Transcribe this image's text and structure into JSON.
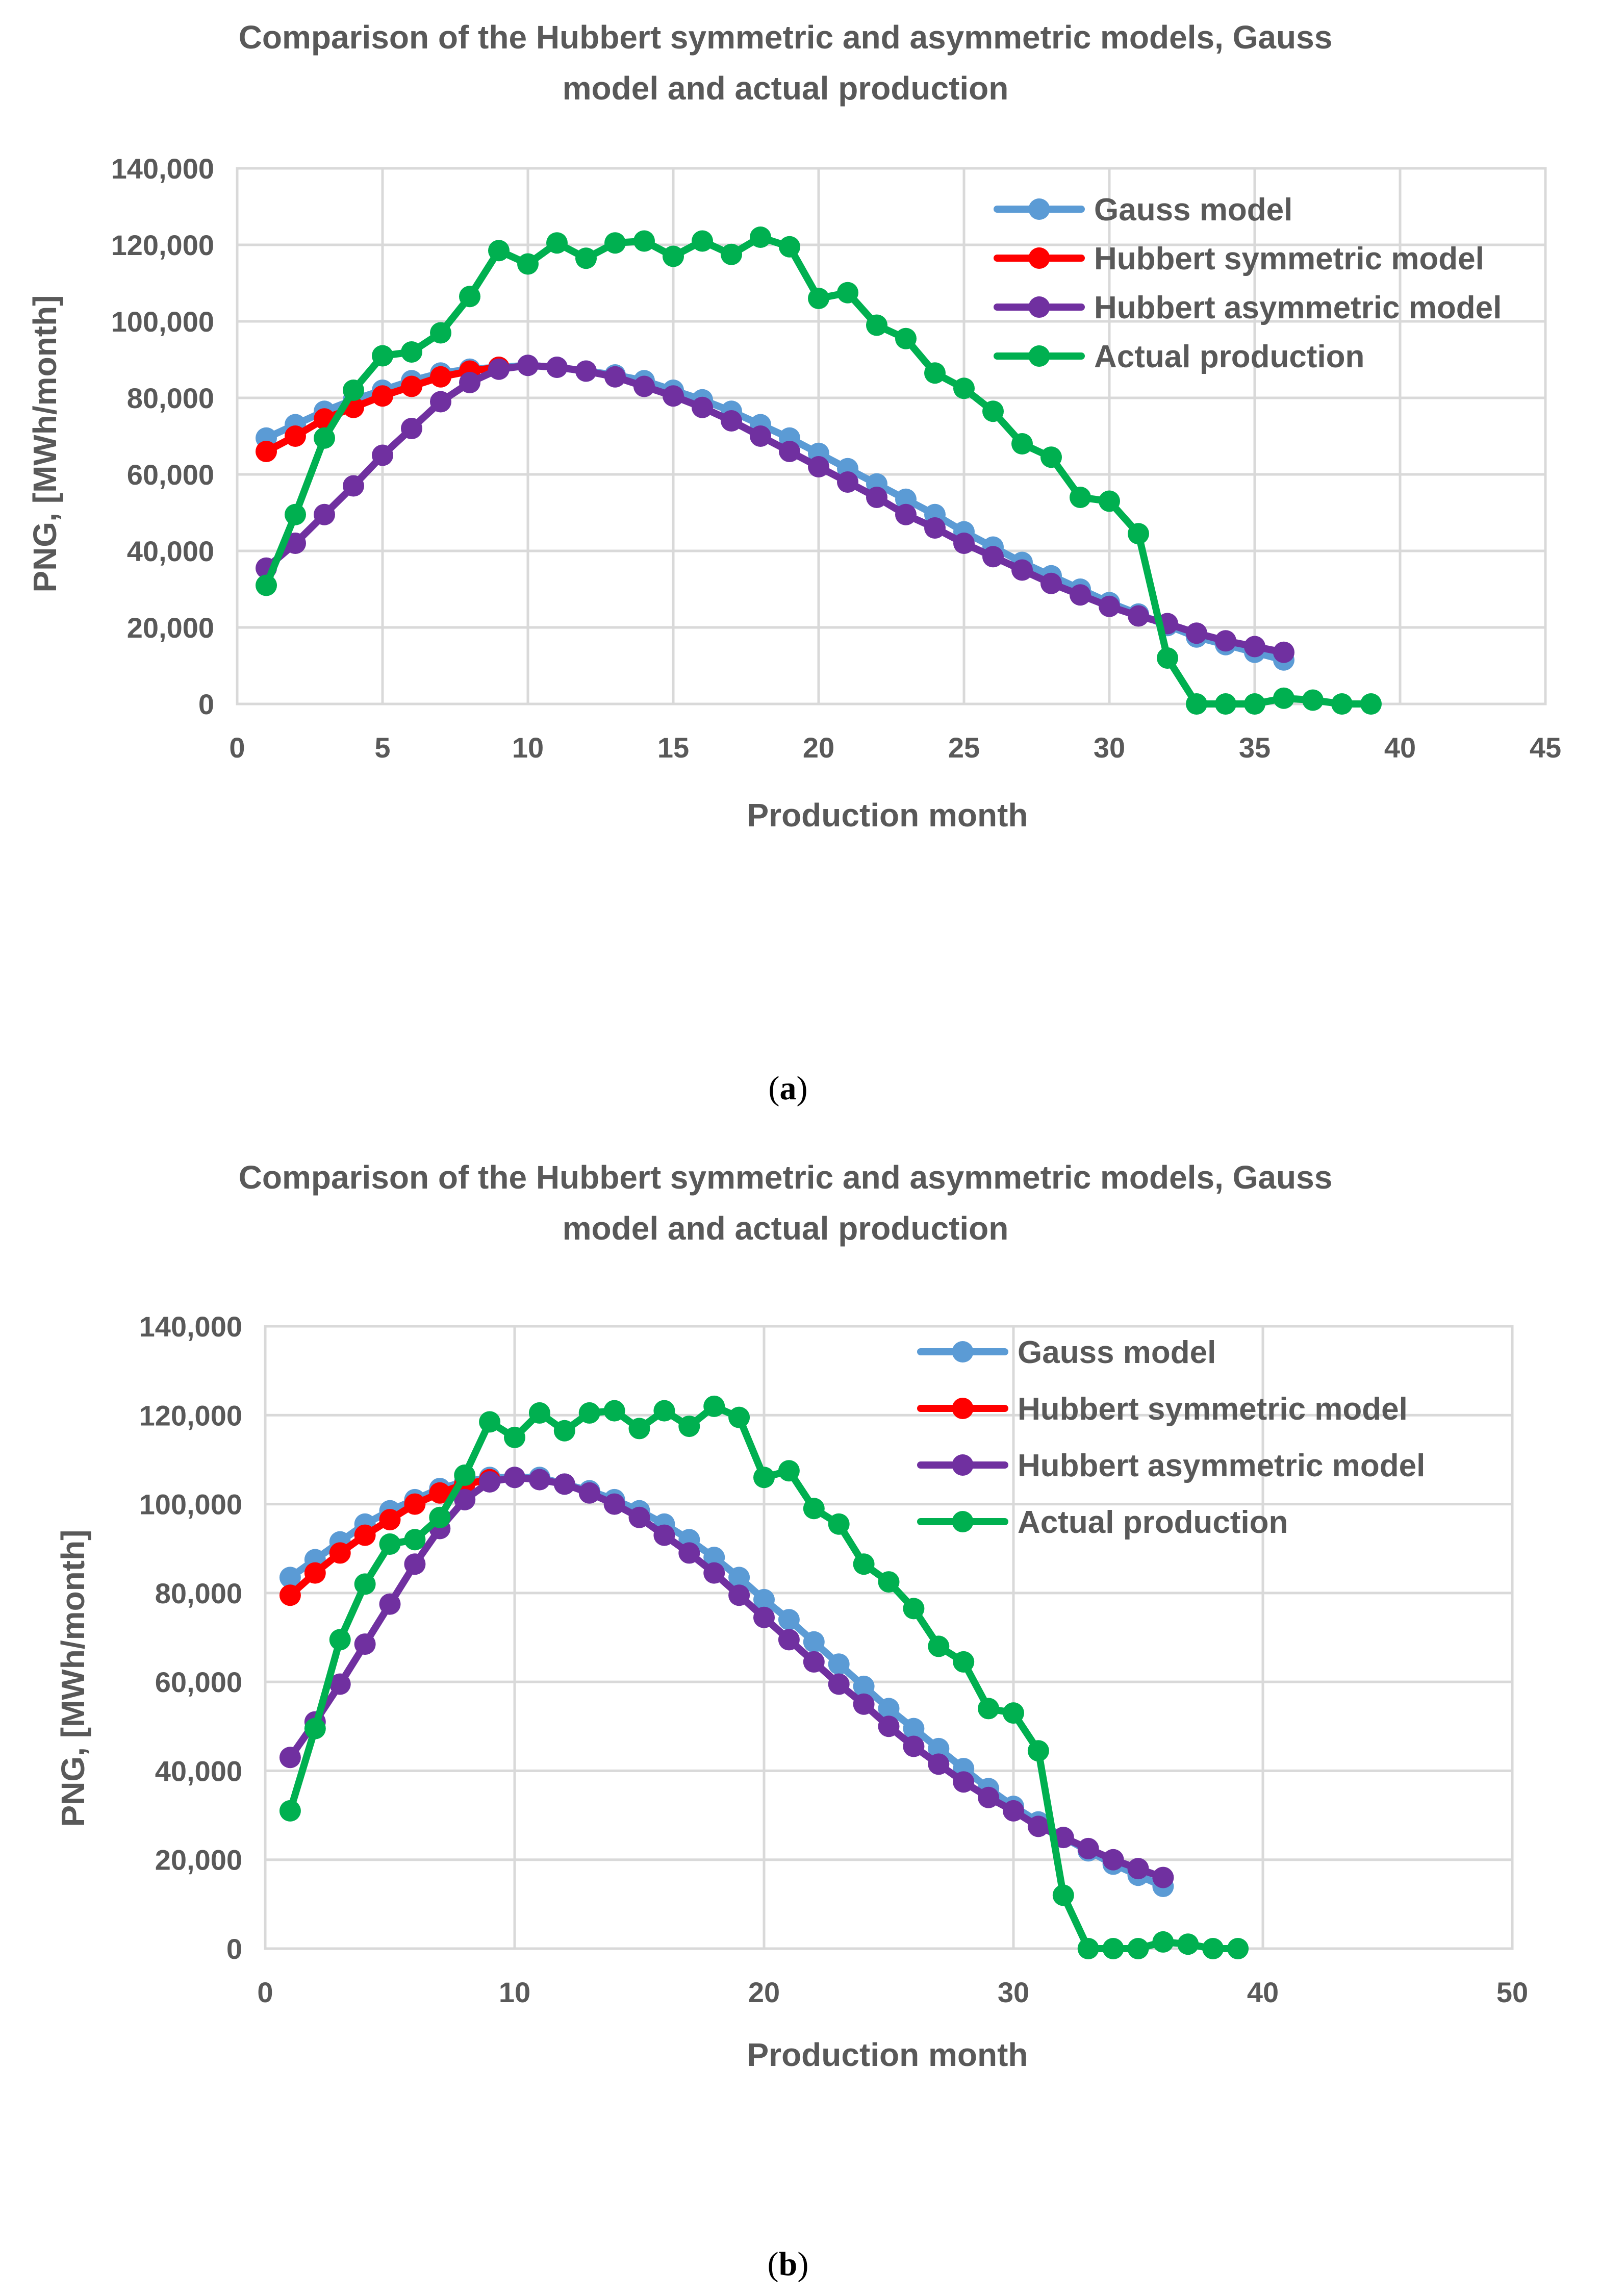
{
  "colors": {
    "gauss": "#5b9bd5",
    "hubbert_symmetric": "#ff0000",
    "hubbert_asymmetric": "#7030a0",
    "actual": "#00b050",
    "text": "#595959",
    "grid": "#d9d9d9"
  },
  "chart_data": [
    {
      "id": "a",
      "type": "line",
      "title_line1": "Comparison of the Hubbert symmetric and asymmetric models, Gauss",
      "title_line2": "model and actual production",
      "xlabel": "Production month",
      "ylabel": "PNG, [MWh/month]",
      "xlim": [
        0,
        45
      ],
      "xticks": [
        0,
        5,
        10,
        15,
        20,
        25,
        30,
        35,
        40,
        45
      ],
      "ylim": [
        0,
        140000
      ],
      "yticks": [
        0,
        20000,
        40000,
        60000,
        80000,
        100000,
        120000,
        140000
      ],
      "ytick_labels": [
        "0",
        "20,000",
        "40,000",
        "60,000",
        "80,000",
        "100,000",
        "120,000",
        "140,000"
      ],
      "caption_open": "(",
      "caption_letter": "a",
      "caption_close": ")",
      "legend_position": "top-right",
      "series": [
        {
          "key": "gauss",
          "name": "Gauss model",
          "x": [
            1,
            2,
            3,
            4,
            5,
            6,
            7,
            8,
            9,
            10,
            11,
            12,
            13,
            14,
            15,
            16,
            17,
            18,
            19,
            20,
            21,
            22,
            23,
            24,
            25,
            26,
            27,
            28,
            29,
            30,
            31,
            32,
            33,
            34,
            35,
            36
          ],
          "y": [
            69500,
            73000,
            76500,
            79500,
            82000,
            84500,
            86500,
            87500,
            88000,
            88500,
            88000,
            87000,
            86000,
            84500,
            82000,
            79500,
            76500,
            73000,
            69500,
            65500,
            61500,
            57500,
            53500,
            49500,
            45000,
            41000,
            37000,
            33500,
            30000,
            26500,
            23500,
            20500,
            17500,
            15500,
            13500,
            11500
          ]
        },
        {
          "key": "hubbert_symmetric",
          "name": "Hubbert symmetric model",
          "x": [
            1,
            2,
            3,
            4,
            5,
            6,
            7,
            8,
            9
          ],
          "y": [
            66000,
            70000,
            74500,
            77500,
            80500,
            83000,
            85500,
            87000,
            88000
          ]
        },
        {
          "key": "hubbert_asymmetric",
          "name": "Hubbert asymmetric model",
          "x": [
            1,
            2,
            3,
            4,
            5,
            6,
            7,
            8,
            9,
            10,
            11,
            12,
            13,
            14,
            15,
            16,
            17,
            18,
            19,
            20,
            21,
            22,
            23,
            24,
            25,
            26,
            27,
            28,
            29,
            30,
            31,
            32,
            33,
            34,
            35,
            36
          ],
          "y": [
            35500,
            42000,
            49500,
            57000,
            65000,
            72000,
            79000,
            84000,
            87500,
            88500,
            88000,
            87000,
            85500,
            83000,
            80500,
            77500,
            74000,
            70000,
            66000,
            62000,
            58000,
            54000,
            49500,
            46000,
            42000,
            38500,
            35000,
            31500,
            28500,
            25500,
            23000,
            21000,
            18500,
            16500,
            15000,
            13500
          ]
        },
        {
          "key": "actual",
          "name": "Actual production",
          "x": [
            1,
            2,
            3,
            4,
            5,
            6,
            7,
            8,
            9,
            10,
            11,
            12,
            13,
            14,
            15,
            16,
            17,
            18,
            19,
            20,
            21,
            22,
            23,
            24,
            25,
            26,
            27,
            28,
            29,
            30,
            31,
            32,
            33,
            34,
            35,
            36,
            37,
            38,
            39
          ],
          "y": [
            31000,
            49500,
            69500,
            82000,
            91000,
            92000,
            97000,
            106500,
            118500,
            115000,
            120500,
            116500,
            120500,
            121000,
            117000,
            121000,
            117500,
            122000,
            119500,
            106000,
            107500,
            99000,
            95500,
            86500,
            82500,
            76500,
            68000,
            64500,
            54000,
            53000,
            44500,
            12000,
            0,
            0,
            0,
            1500,
            1000,
            0,
            0
          ]
        }
      ]
    },
    {
      "id": "b",
      "type": "line",
      "title_line1": "Comparison of the Hubbert symmetric and asymmetric models, Gauss",
      "title_line2": "model and actual production",
      "xlabel": "Production month",
      "ylabel": "PNG, [MWh/month]",
      "xlim": [
        0,
        50
      ],
      "xticks": [
        0,
        10,
        20,
        30,
        40,
        50
      ],
      "ylim": [
        0,
        140000
      ],
      "yticks": [
        0,
        20000,
        40000,
        60000,
        80000,
        100000,
        120000,
        140000
      ],
      "ytick_labels": [
        "0",
        "20,000",
        "40,000",
        "60,000",
        "80,000",
        "100,000",
        "120,000",
        "140,000"
      ],
      "caption_open": "(",
      "caption_letter": "b",
      "caption_close": ")",
      "legend_position": "top-right",
      "series": [
        {
          "key": "gauss",
          "name": "Gauss model",
          "x": [
            1,
            2,
            3,
            4,
            5,
            6,
            7,
            8,
            9,
            10,
            11,
            12,
            13,
            14,
            15,
            16,
            17,
            18,
            19,
            20,
            21,
            22,
            23,
            24,
            25,
            26,
            27,
            28,
            29,
            30,
            31,
            32,
            33,
            34,
            35,
            36
          ],
          "y": [
            83500,
            87500,
            91500,
            95500,
            98500,
            101000,
            103500,
            105000,
            106000,
            106000,
            106000,
            104500,
            103000,
            101000,
            98500,
            95500,
            92000,
            88000,
            83500,
            78500,
            74000,
            69000,
            64000,
            59000,
            54000,
            49500,
            45000,
            40500,
            36000,
            32000,
            28500,
            25000,
            22000,
            19000,
            16500,
            14000
          ]
        },
        {
          "key": "hubbert_symmetric",
          "name": "Hubbert symmetric model",
          "x": [
            1,
            2,
            3,
            4,
            5,
            6,
            7,
            8,
            9
          ],
          "y": [
            79500,
            84500,
            89000,
            93000,
            96500,
            100000,
            102500,
            104500,
            105500
          ]
        },
        {
          "key": "hubbert_asymmetric",
          "name": "Hubbert asymmetric model",
          "x": [
            1,
            2,
            3,
            4,
            5,
            6,
            7,
            8,
            9,
            10,
            11,
            12,
            13,
            14,
            15,
            16,
            17,
            18,
            19,
            20,
            21,
            22,
            23,
            24,
            25,
            26,
            27,
            28,
            29,
            30,
            31,
            32,
            33,
            34,
            35,
            36
          ],
          "y": [
            43000,
            51000,
            59500,
            68500,
            77500,
            86500,
            94500,
            101000,
            105000,
            106000,
            105500,
            104500,
            102500,
            100000,
            97000,
            93000,
            89000,
            84500,
            79500,
            74500,
            69500,
            64500,
            59500,
            55000,
            50000,
            45500,
            41500,
            37500,
            34000,
            31000,
            27500,
            25000,
            22500,
            20000,
            18000,
            16000
          ]
        },
        {
          "key": "actual",
          "name": "Actual production",
          "x": [
            1,
            2,
            3,
            4,
            5,
            6,
            7,
            8,
            9,
            10,
            11,
            12,
            13,
            14,
            15,
            16,
            17,
            18,
            19,
            20,
            21,
            22,
            23,
            24,
            25,
            26,
            27,
            28,
            29,
            30,
            31,
            32,
            33,
            34,
            35,
            36,
            37,
            38,
            39
          ],
          "y": [
            31000,
            49500,
            69500,
            82000,
            91000,
            92000,
            97000,
            106500,
            118500,
            115000,
            120500,
            116500,
            120500,
            121000,
            117000,
            121000,
            117500,
            122000,
            119500,
            106000,
            107500,
            99000,
            95500,
            86500,
            82500,
            76500,
            68000,
            64500,
            54000,
            53000,
            44500,
            12000,
            0,
            0,
            0,
            1500,
            1000,
            0,
            0
          ]
        }
      ]
    }
  ]
}
